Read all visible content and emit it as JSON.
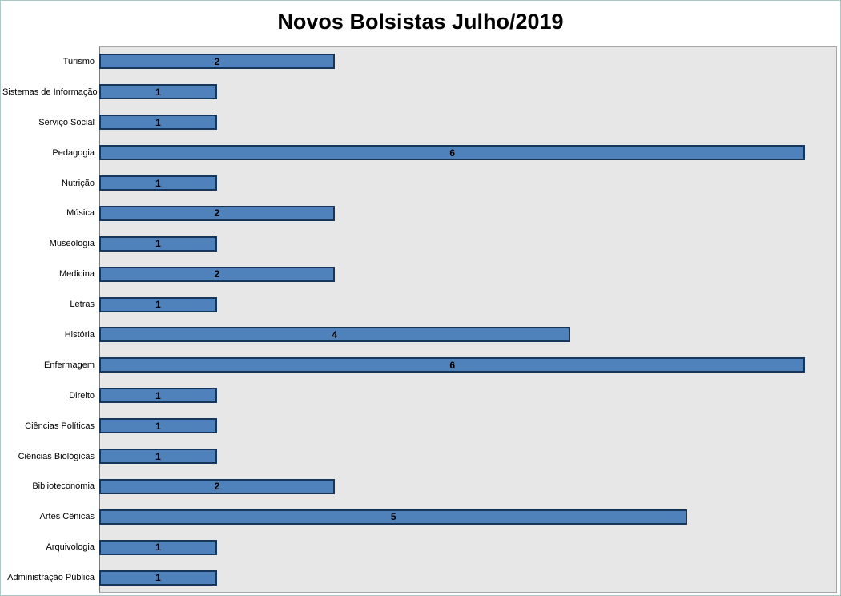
{
  "chart_data": {
    "type": "bar",
    "orientation": "horizontal",
    "title": "Novos Bolsistas Julho/2019",
    "categories": [
      "Turismo",
      "Sistemas de Informação",
      "Serviço Social",
      "Pedagogia",
      "Nutrição",
      "Música",
      "Museologia",
      "Medicina",
      "Letras",
      "História",
      "Enfermagem",
      "Direito",
      "Ciências Políticas",
      "Ciências Biológicas",
      "Biblioteconomia",
      "Artes Cênicas",
      "Arquivologia",
      "Administração Pública"
    ],
    "values": [
      2,
      1,
      1,
      6,
      1,
      2,
      1,
      2,
      1,
      4,
      6,
      1,
      1,
      1,
      2,
      5,
      1,
      1
    ],
    "xlabel": "",
    "ylabel": "",
    "xlim": [
      0,
      6.27
    ],
    "grid": false,
    "legend": false,
    "data_labels": "center-inside-bar",
    "colors": {
      "bar_fill": "#4f81bb",
      "bar_border": "#16365c",
      "plot_bg": "#e7e7e7",
      "plot_border": "#a6a6a6",
      "title_color": "#000000"
    }
  }
}
